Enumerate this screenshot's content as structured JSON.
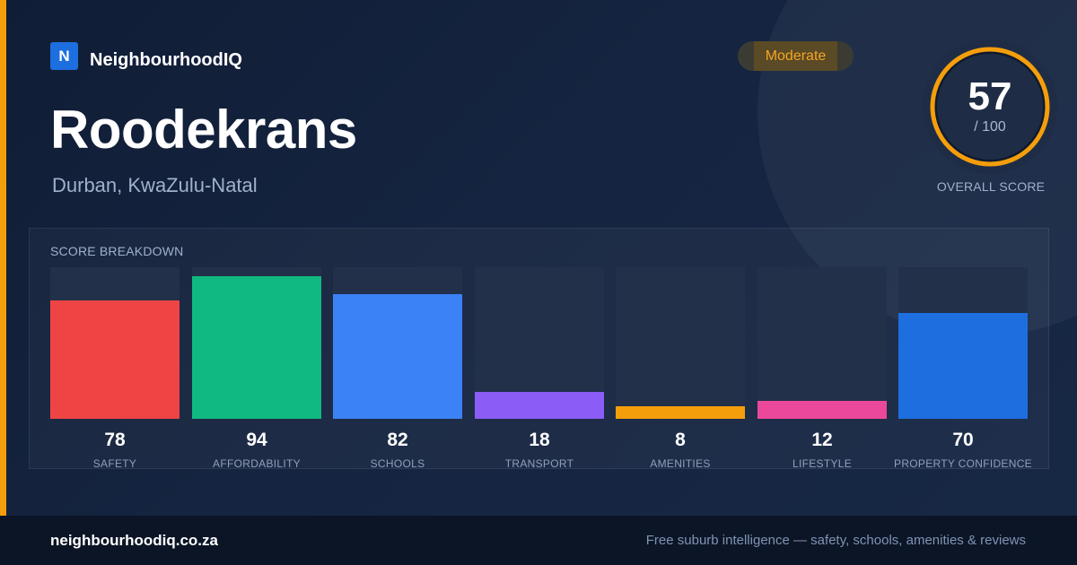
{
  "brand": {
    "logo_letter": "N",
    "name": "NeighbourhoodIQ",
    "color": "#1d6fe0"
  },
  "suburb": {
    "name": "Roodekrans",
    "location": "Durban, KwaZulu-Natal"
  },
  "rating_badge": {
    "label": "Moderate",
    "color": "#f5a524"
  },
  "overall": {
    "score": "57",
    "max": "/ 100",
    "fraction": 0.57,
    "label": "OVERALL SCORE",
    "ring_color": "#f59e0b"
  },
  "breakdown": {
    "title": "SCORE BREAKDOWN",
    "categories": [
      {
        "label": "SAFETY",
        "value": "78",
        "score": 78,
        "color": "#ef4444"
      },
      {
        "label": "AFFORDABILITY",
        "value": "94",
        "score": 94,
        "color": "#10b981"
      },
      {
        "label": "SCHOOLS",
        "value": "82",
        "score": 82,
        "color": "#3b82f6"
      },
      {
        "label": "TRANSPORT",
        "value": "18",
        "score": 18,
        "color": "#8b5cf6"
      },
      {
        "label": "AMENITIES",
        "value": "8",
        "score": 8,
        "color": "#f59e0b"
      },
      {
        "label": "LIFESTYLE",
        "value": "12",
        "score": 12,
        "color": "#ec4899"
      },
      {
        "label": "PROPERTY CONFIDENCE",
        "value": "70",
        "score": 70,
        "color": "#1d6fe0"
      }
    ]
  },
  "footer": {
    "url": "neighbourhoodiq.co.za",
    "tagline": "Free suburb intelligence — safety, schools, amenities & reviews"
  }
}
